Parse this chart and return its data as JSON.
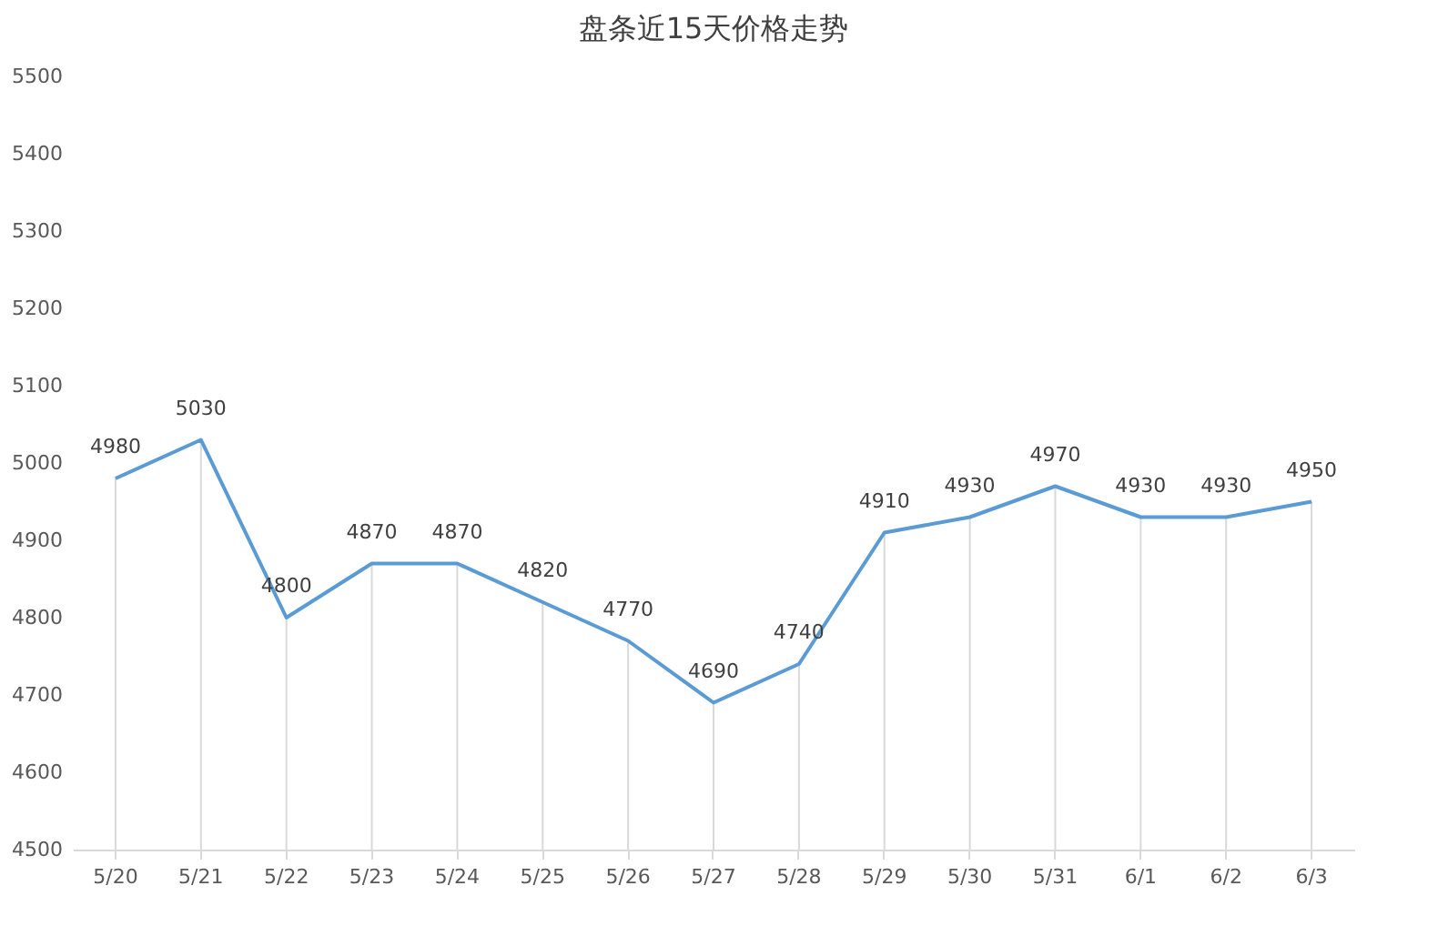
{
  "chart_data": {
    "type": "line",
    "title": "盘条近15天价格走势",
    "categories": [
      "5/20",
      "5/21",
      "5/22",
      "5/23",
      "5/24",
      "5/25",
      "5/26",
      "5/27",
      "5/28",
      "5/29",
      "5/30",
      "5/31",
      "6/1",
      "6/2",
      "6/3"
    ],
    "series": [
      {
        "color": "#5b9bd5",
        "values": [
          4980,
          5030,
          4800,
          4870,
          4870,
          4820,
          4770,
          4690,
          4740,
          4910,
          4930,
          4970,
          4930,
          4930,
          4950
        ]
      }
    ],
    "ylim": [
      4500,
      5500
    ],
    "yticks": [
      4500,
      4600,
      4700,
      4800,
      4900,
      5000,
      5100,
      5200,
      5300,
      5400,
      5500
    ],
    "grid": false,
    "marker": "none",
    "line_style": "solid",
    "data_labels": true
  }
}
